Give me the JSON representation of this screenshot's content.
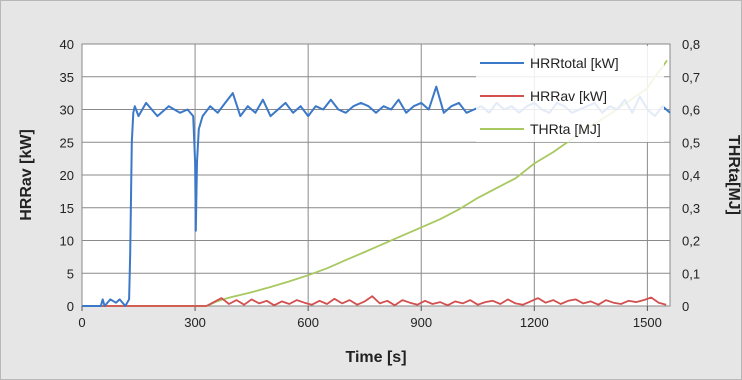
{
  "chart_data": {
    "type": "line",
    "xlabel": "Time [s]",
    "ylabel_left": "HRRav [kW]",
    "ylabel_right": "THRta[MJ]",
    "xlim": [
      0,
      1560
    ],
    "ylim_left": [
      0,
      40
    ],
    "ylim_right": [
      0,
      0.8
    ],
    "x_ticks": [
      0,
      300,
      600,
      900,
      1200,
      1500
    ],
    "y_ticks_left": [
      0,
      5,
      10,
      15,
      20,
      25,
      30,
      35,
      40
    ],
    "y_ticks_right": [
      "0",
      "0,1",
      "0,2",
      "0,3",
      "0,4",
      "0,5",
      "0,6",
      "0,7",
      "0,8"
    ],
    "grid": true,
    "legend_position": "top-right",
    "series": [
      {
        "name": "HRRtotal [kW]",
        "axis": "left",
        "color": "#3c78c8",
        "x": [
          0,
          50,
          55,
          60,
          75,
          90,
          100,
          115,
          125,
          128,
          132,
          136,
          140,
          150,
          170,
          200,
          230,
          260,
          280,
          295,
          300,
          302,
          305,
          310,
          320,
          340,
          360,
          380,
          400,
          420,
          440,
          460,
          480,
          500,
          520,
          540,
          560,
          580,
          600,
          620,
          640,
          660,
          680,
          700,
          720,
          740,
          760,
          780,
          800,
          820,
          840,
          860,
          880,
          900,
          920,
          940,
          960,
          980,
          1000,
          1020,
          1040,
          1060,
          1080,
          1100,
          1120,
          1140,
          1160,
          1180,
          1200,
          1220,
          1240,
          1260,
          1280,
          1300,
          1320,
          1340,
          1360,
          1380,
          1400,
          1420,
          1440,
          1460,
          1480,
          1500,
          1520,
          1540,
          1560
        ],
        "y": [
          0,
          0,
          1,
          0,
          1,
          0.5,
          1,
          0,
          1,
          8,
          25,
          29.5,
          30.5,
          29,
          31,
          29,
          30.5,
          29.5,
          30,
          29,
          22,
          11.5,
          22,
          27,
          29,
          30.5,
          29.5,
          31,
          32.5,
          29,
          30.5,
          29.5,
          31.5,
          29,
          30,
          31,
          29.5,
          30.5,
          29,
          30.5,
          30,
          31.5,
          30,
          29.5,
          30.5,
          31,
          30.5,
          29.5,
          30.5,
          30,
          31.5,
          29.5,
          30.5,
          31,
          30,
          33.5,
          29.5,
          30.5,
          31,
          29.5,
          30,
          30.5,
          29.5,
          31,
          30,
          30.5,
          29.5,
          30.5,
          31,
          30,
          29.5,
          31,
          30.5,
          29.5,
          30,
          30.5,
          31,
          29.5,
          30.5,
          30,
          31.5,
          29.5,
          32,
          30,
          29,
          30.5,
          29.5
        ]
      },
      {
        "name": "HRRav [kW]",
        "axis": "left",
        "color": "#d35050",
        "x": [
          0,
          330,
          350,
          370,
          390,
          410,
          430,
          450,
          470,
          490,
          510,
          530,
          550,
          570,
          590,
          610,
          630,
          650,
          670,
          690,
          710,
          730,
          750,
          770,
          790,
          810,
          830,
          850,
          870,
          890,
          910,
          930,
          950,
          970,
          990,
          1010,
          1030,
          1050,
          1070,
          1090,
          1110,
          1130,
          1150,
          1170,
          1190,
          1210,
          1230,
          1250,
          1270,
          1290,
          1310,
          1330,
          1350,
          1370,
          1390,
          1410,
          1430,
          1450,
          1470,
          1490,
          1510,
          1530,
          1550
        ],
        "y": [
          0,
          0,
          0.6,
          1.2,
          0.3,
          0.9,
          0.2,
          1.0,
          0.4,
          0.8,
          0.1,
          0.7,
          0.3,
          0.9,
          0.5,
          0.2,
          0.8,
          0.3,
          1.1,
          0.4,
          0.9,
          0.2,
          0.7,
          1.5,
          0.4,
          0.8,
          0.1,
          0.9,
          0.5,
          0.2,
          0.8,
          0.3,
          0.6,
          0.1,
          0.7,
          0.4,
          0.9,
          0.2,
          0.6,
          0.8,
          0.3,
          1.0,
          0.4,
          0.2,
          0.7,
          1.2,
          0.5,
          0.9,
          0.3,
          0.8,
          1.0,
          0.4,
          0.7,
          0.2,
          0.9,
          0.5,
          0.3,
          0.8,
          0.6,
          0.9,
          1.3,
          0.5,
          0.2
        ]
      },
      {
        "name": "THRta [MJ]",
        "axis": "right",
        "color": "#a8c860",
        "x": [
          0,
          330,
          340,
          360,
          380,
          400,
          450,
          500,
          550,
          600,
          650,
          700,
          750,
          800,
          850,
          900,
          950,
          1000,
          1050,
          1100,
          1150,
          1200,
          1250,
          1300,
          1350,
          1400,
          1450,
          1500,
          1520,
          1540,
          1552
        ],
        "y": [
          0,
          0,
          0.005,
          0.015,
          0.022,
          0.028,
          0.042,
          0.058,
          0.075,
          0.094,
          0.115,
          0.14,
          0.165,
          0.19,
          0.215,
          0.24,
          0.265,
          0.295,
          0.33,
          0.36,
          0.39,
          0.435,
          0.47,
          0.51,
          0.55,
          0.585,
          0.625,
          0.665,
          0.7,
          0.73,
          0.75
        ]
      }
    ]
  }
}
